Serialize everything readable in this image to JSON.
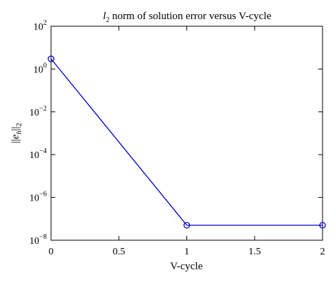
{
  "chart_data": {
    "type": "line",
    "title": {
      "var": "l",
      "sub": "2",
      "rest": " norm of solution error versus V-cycle"
    },
    "xlabel": "V-cycle",
    "ylabel": {
      "open": "||",
      "var": "e",
      "var_sub": "h",
      "close": "||",
      "sub": "2"
    },
    "x": [
      0,
      1,
      2
    ],
    "series": [
      {
        "values": [
          3.0,
          5e-08,
          5e-08
        ],
        "color": "#0000cc",
        "marker": "circle"
      }
    ],
    "xlim": [
      0,
      2
    ],
    "ylim": [
      1e-08,
      100
    ],
    "y_scale": "log",
    "x_ticks": [
      {
        "value": 0,
        "label": "0"
      },
      {
        "value": 0.5,
        "label": "0.5"
      },
      {
        "value": 1,
        "label": "1"
      },
      {
        "value": 1.5,
        "label": "1.5"
      },
      {
        "value": 2,
        "label": "2"
      }
    ],
    "y_ticks": [
      {
        "value": 1e-08,
        "base": "10",
        "exp": "−8"
      },
      {
        "value": 1e-06,
        "base": "10",
        "exp": "−6"
      },
      {
        "value": 0.0001,
        "base": "10",
        "exp": "−4"
      },
      {
        "value": 0.01,
        "base": "10",
        "exp": "−2"
      },
      {
        "value": 1,
        "base": "10",
        "exp": "0"
      },
      {
        "value": 100,
        "base": "10",
        "exp": "2"
      }
    ],
    "grid": false
  }
}
